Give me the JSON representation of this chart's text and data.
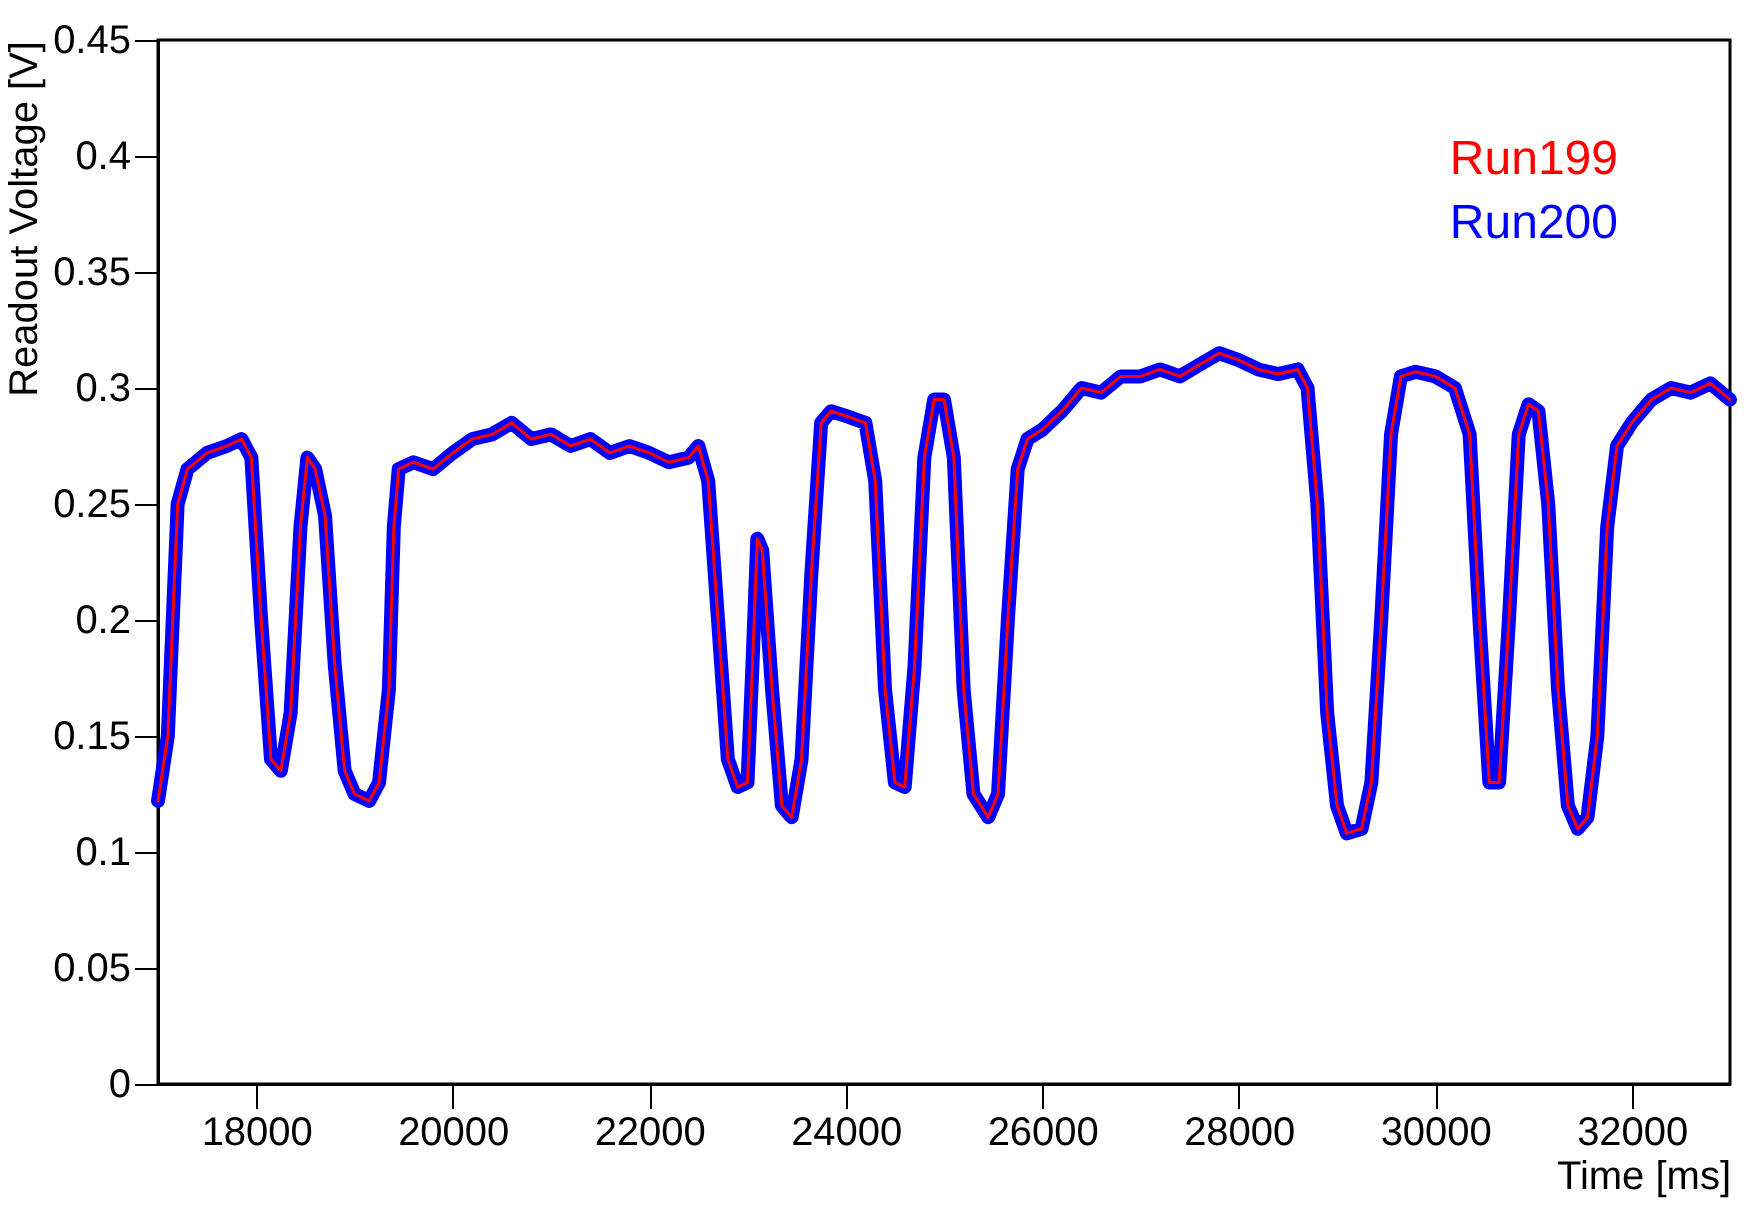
{
  "chart_data": {
    "type": "line",
    "xlabel": "Time [ms]",
    "ylabel": "Readout Voltage [V]",
    "x": [
      17000,
      17100,
      17200,
      17300,
      17500,
      17700,
      17850,
      17950,
      18050,
      18150,
      18250,
      18350,
      18450,
      18520,
      18600,
      18700,
      18800,
      18900,
      19000,
      19150,
      19250,
      19350,
      19400,
      19450,
      19600,
      19800,
      20000,
      20200,
      20400,
      20600,
      20800,
      21000,
      21200,
      21400,
      21600,
      21800,
      22000,
      22200,
      22400,
      22500,
      22600,
      22700,
      22800,
      22900,
      23000,
      23050,
      23100,
      23150,
      23250,
      23350,
      23450,
      23550,
      23650,
      23750,
      23850,
      24000,
      24200,
      24300,
      24400,
      24500,
      24600,
      24700,
      24800,
      24900,
      25000,
      25100,
      25200,
      25300,
      25450,
      25550,
      25650,
      25750,
      25850,
      26000,
      26200,
      26400,
      26600,
      26800,
      27000,
      27200,
      27400,
      27600,
      27800,
      28000,
      28200,
      28400,
      28600,
      28700,
      28800,
      28900,
      29000,
      29100,
      29250,
      29350,
      29450,
      29550,
      29650,
      29800,
      30000,
      30200,
      30350,
      30450,
      30550,
      30650,
      30750,
      30850,
      30950,
      31050,
      31150,
      31250,
      31350,
      31450,
      31550,
      31650,
      31750,
      31850,
      32000,
      32200,
      32400,
      32600,
      32800,
      33000
    ],
    "series": [
      {
        "name": "Run200",
        "color": "#0000ff",
        "values": [
          0.122,
          0.15,
          0.25,
          0.265,
          0.272,
          0.275,
          0.278,
          0.27,
          0.2,
          0.14,
          0.135,
          0.16,
          0.24,
          0.27,
          0.265,
          0.245,
          0.18,
          0.135,
          0.125,
          0.122,
          0.13,
          0.17,
          0.24,
          0.265,
          0.268,
          0.265,
          0.272,
          0.278,
          0.28,
          0.285,
          0.278,
          0.28,
          0.275,
          0.278,
          0.272,
          0.275,
          0.272,
          0.268,
          0.27,
          0.275,
          0.26,
          0.2,
          0.14,
          0.128,
          0.13,
          0.18,
          0.235,
          0.23,
          0.17,
          0.12,
          0.115,
          0.14,
          0.22,
          0.285,
          0.29,
          0.288,
          0.285,
          0.26,
          0.17,
          0.13,
          0.128,
          0.18,
          0.27,
          0.295,
          0.295,
          0.27,
          0.17,
          0.125,
          0.115,
          0.125,
          0.2,
          0.265,
          0.278,
          0.282,
          0.29,
          0.3,
          0.298,
          0.305,
          0.305,
          0.308,
          0.305,
          0.31,
          0.315,
          0.312,
          0.308,
          0.306,
          0.308,
          0.3,
          0.25,
          0.16,
          0.12,
          0.108,
          0.11,
          0.13,
          0.2,
          0.28,
          0.305,
          0.307,
          0.305,
          0.3,
          0.28,
          0.2,
          0.13,
          0.13,
          0.2,
          0.28,
          0.293,
          0.29,
          0.25,
          0.17,
          0.12,
          0.11,
          0.115,
          0.15,
          0.24,
          0.275,
          0.285,
          0.295,
          0.3,
          0.298,
          0.302,
          0.295
        ]
      },
      {
        "name": "Run199",
        "color": "#ff0000",
        "values": [
          0.122,
          0.15,
          0.25,
          0.265,
          0.272,
          0.275,
          0.278,
          0.27,
          0.2,
          0.14,
          0.135,
          0.16,
          0.24,
          0.27,
          0.265,
          0.245,
          0.18,
          0.135,
          0.125,
          0.122,
          0.13,
          0.17,
          0.24,
          0.265,
          0.268,
          0.265,
          0.272,
          0.278,
          0.28,
          0.285,
          0.278,
          0.28,
          0.275,
          0.278,
          0.272,
          0.275,
          0.272,
          0.268,
          0.27,
          0.275,
          0.26,
          0.2,
          0.14,
          0.128,
          0.13,
          0.18,
          0.235,
          0.23,
          0.17,
          0.12,
          0.115,
          0.14,
          0.22,
          0.285,
          0.29,
          0.288,
          0.285,
          0.26,
          0.17,
          0.13,
          0.128,
          0.18,
          0.27,
          0.295,
          0.295,
          0.27,
          0.17,
          0.125,
          0.115,
          0.125,
          0.2,
          0.265,
          0.278,
          0.282,
          0.29,
          0.3,
          0.298,
          0.305,
          0.305,
          0.308,
          0.305,
          0.31,
          0.315,
          0.312,
          0.308,
          0.306,
          0.308,
          0.3,
          0.25,
          0.16,
          0.12,
          0.108,
          0.11,
          0.13,
          0.2,
          0.28,
          0.305,
          0.307,
          0.305,
          0.3,
          0.28,
          0.2,
          0.13,
          0.13,
          0.2,
          0.28,
          0.293,
          0.29,
          0.25,
          0.17,
          0.12,
          0.11,
          0.115,
          0.15,
          0.24,
          0.275,
          0.285,
          0.295,
          0.3,
          0.298,
          0.302,
          0.295
        ]
      }
    ],
    "xlim": [
      17000,
      33000
    ],
    "xticks": [
      18000,
      20000,
      22000,
      24000,
      26000,
      28000,
      30000,
      32000
    ],
    "ylim": [
      0,
      0.45
    ],
    "yticks": [
      0,
      0.05,
      0.1,
      0.15,
      0.2,
      0.25,
      0.3,
      0.35,
      0.4,
      0.45
    ],
    "grid": false,
    "line_style": "solid"
  }
}
